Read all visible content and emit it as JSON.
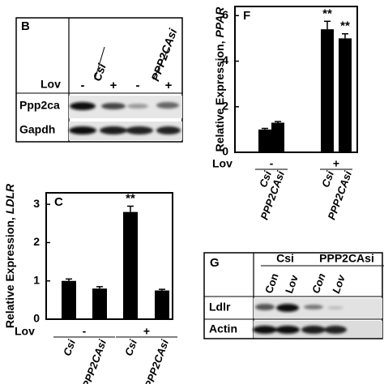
{
  "chart_data": [
    {
      "type": "bar",
      "panel_label": "F",
      "y_label": "Relative Expression,",
      "y_label_gene": "PPAR",
      "categories": [
        "Csi",
        "PPP2CAsi",
        "Csi",
        "PPP2CAsi"
      ],
      "group_label": "Lov",
      "groups": [
        "-",
        "+"
      ],
      "values": [
        1.0,
        1.3,
        5.4,
        5.0
      ],
      "errors": [
        0.05,
        0.05,
        0.35,
        0.2
      ],
      "significance": [
        null,
        null,
        "**",
        "**"
      ],
      "color": "#000000",
      "ylim": [
        0,
        6.4
      ],
      "yticks": [
        0,
        2,
        4,
        6
      ]
    },
    {
      "type": "bar",
      "panel_label": "C",
      "y_label": "Relative Expression,",
      "y_label_gene": "LDLR",
      "categories": [
        "Csi",
        "PPP2CAsi",
        "Csi",
        "PPP2CAsi"
      ],
      "group_label": "Lov",
      "groups": [
        "-",
        "+"
      ],
      "values": [
        1.0,
        0.8,
        2.8,
        0.75
      ],
      "errors": [
        0.05,
        0.05,
        0.15,
        0.03
      ],
      "significance": [
        null,
        null,
        "**",
        null
      ],
      "color": "#000000",
      "ylim": [
        0,
        3.3
      ],
      "yticks": [
        0,
        1,
        2,
        3
      ]
    }
  ],
  "blots": [
    {
      "panel_label": "B",
      "groups": [
        "Csi",
        "PPP2CAsi"
      ],
      "treatment_label": "Lov",
      "lanes": [
        "-",
        "+",
        "-",
        "+"
      ],
      "rows": [
        "Ppp2ca",
        "Gapdh"
      ]
    },
    {
      "panel_label": "G",
      "groups": [
        "Csi",
        "PPP2CAsi"
      ],
      "lanes": [
        "Con",
        "Lov",
        "Con",
        "Lov"
      ],
      "rows": [
        "Ldlr",
        "Actin"
      ]
    }
  ]
}
